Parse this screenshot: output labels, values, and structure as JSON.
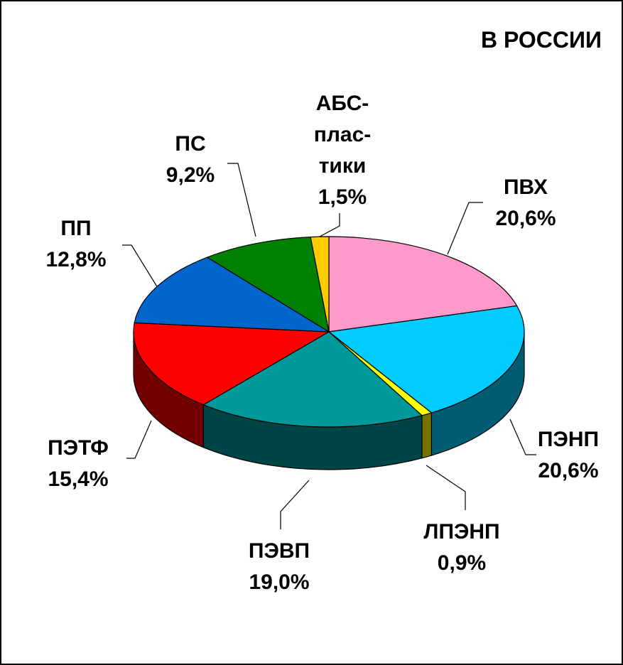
{
  "chart_data": {
    "type": "pie3d",
    "title": "В РОССИИ",
    "categories": [
      "ПВХ",
      "ПЭНП",
      "ЛПЭНП",
      "ПЭВП",
      "ПЭТФ",
      "ПП",
      "ПС",
      "АБС-плас­тики"
    ],
    "values": [
      20.6,
      20.6,
      0.9,
      19.0,
      15.4,
      12.8,
      9.2,
      1.5
    ],
    "value_labels": [
      "20,6%",
      "20,6%",
      "0,9%",
      "19,0%",
      "15,4%",
      "12,8%",
      "9,2%",
      "1,5%"
    ],
    "colors": [
      "#ff99cc",
      "#00ccff",
      "#ffff00",
      "#009999",
      "#ff0000",
      "#0066cc",
      "#008000",
      "#ffcc00"
    ]
  }
}
